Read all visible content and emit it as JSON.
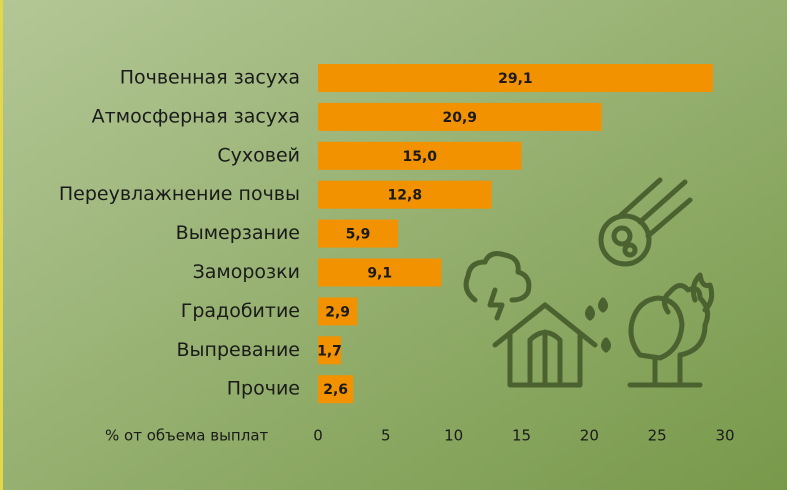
{
  "chart_data": {
    "type": "hbar",
    "categories": [
      "Почвенная засуха",
      "Атмосферная засуха",
      "Суховей",
      "Переувлажнение почвы",
      "Вымерзание",
      "Заморозки",
      "Градобитие",
      "Выпревание",
      "Прочие"
    ],
    "values": [
      29.1,
      20.9,
      15.0,
      12.8,
      5.9,
      9.1,
      2.9,
      1.7,
      2.6
    ],
    "value_labels": [
      "29,1",
      "20,9",
      "15,0",
      "12,8",
      "5,9",
      "9,1",
      "2,9",
      "1,7",
      "2,6"
    ],
    "color": "#f39200",
    "x_label": "% от объема выплат",
    "xlim": [
      0,
      30
    ],
    "xticks": [
      0,
      5,
      10,
      15,
      20,
      25,
      30
    ]
  }
}
